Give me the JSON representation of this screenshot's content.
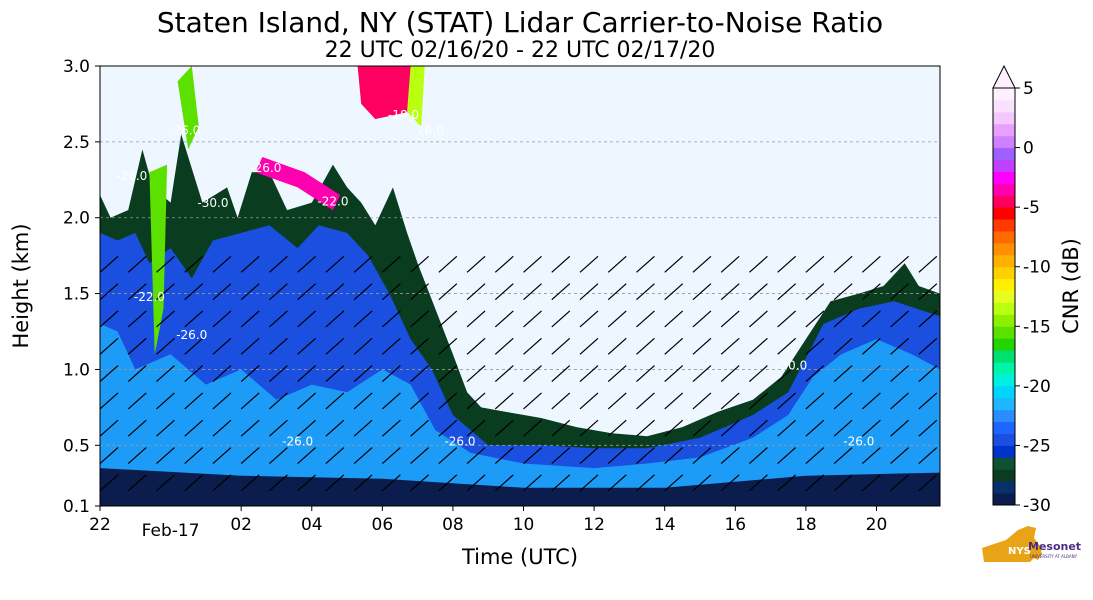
{
  "chart_data": {
    "type": "heatmap",
    "title": "Staten Island, NY (STAT) Lidar Carrier-to-Noise Ratio",
    "subtitle": "22 UTC 02/16/20 - 22 UTC 02/17/20",
    "xlabel": "Time (UTC)",
    "ylabel": "Height (km)",
    "x_ticks": [
      "22",
      "02",
      "04",
      "06",
      "08",
      "10",
      "12",
      "14",
      "16",
      "18",
      "20"
    ],
    "x_tick_hours": [
      -2,
      2,
      4,
      6,
      8,
      10,
      12,
      14,
      16,
      18,
      20
    ],
    "x_date_label": "Feb-17",
    "xlim": [
      -2,
      21.8
    ],
    "y_ticks": [
      "0.1",
      "0.5",
      "1.0",
      "1.5",
      "2.0",
      "2.5",
      "3.0"
    ],
    "y_tick_values": [
      0.1,
      0.5,
      1.0,
      1.5,
      2.0,
      2.5,
      3.0
    ],
    "ylim": [
      0.1,
      3.0
    ],
    "grid": "horizontal dashed",
    "colorbar": {
      "label": "CNR (dB)",
      "ticks": [
        "5",
        "0",
        "-5",
        "-10",
        "-15",
        "-20",
        "-25",
        "-30"
      ],
      "tick_values": [
        5,
        0,
        -5,
        -10,
        -15,
        -20,
        -25,
        -30
      ],
      "range": [
        -30,
        5
      ],
      "extend": "max",
      "colors": [
        "#0b1d4d",
        "#08306b",
        "#0a3d1f",
        "#0f5132",
        "#0033cc",
        "#1a4fe0",
        "#1e66ff",
        "#2a8cff",
        "#1fb6ff",
        "#00d5ff",
        "#00f0e0",
        "#00f5a8",
        "#00e070",
        "#22d400",
        "#5be000",
        "#8cf000",
        "#b8ff10",
        "#e6ff20",
        "#fff000",
        "#ffd000",
        "#ffb000",
        "#ff9000",
        "#ff6a00",
        "#ff3a00",
        "#ff0000",
        "#ff0060",
        "#ff00b0",
        "#ff00ff",
        "#c040ff",
        "#a060ff",
        "#d080ff",
        "#e8a0ff",
        "#f4c8ff",
        "#fae0ff",
        "#fff0ff"
      ]
    },
    "contour_labels": [
      "-26.0",
      "-30.0",
      "-22.0",
      "-26.0",
      "-26.0",
      "-22.0",
      "-18.0",
      "-26.0",
      "-26.0",
      "-26.0",
      "-30.0",
      "-26.0",
      "-26.0"
    ],
    "background_color": "#eef6ff"
  },
  "logo_text": {
    "brand": "NYS",
    "name": "Mesonet",
    "sub": "UNIVERSITY AT ALBANY"
  }
}
